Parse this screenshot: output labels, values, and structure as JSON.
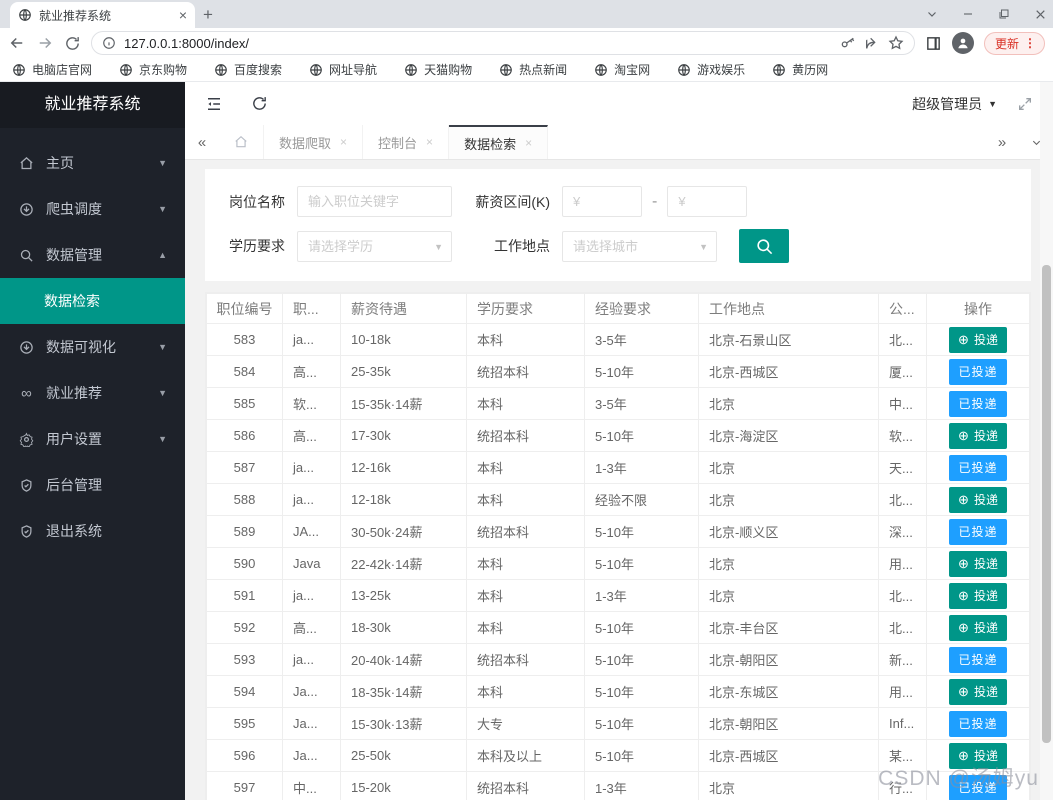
{
  "browser": {
    "tab_title": "就业推荐系统",
    "url": "127.0.0.1:8000/index/",
    "update_label": "更新",
    "bookmarks": [
      "电脑店官网",
      "京东购物",
      "百度搜索",
      "网址导航",
      "天猫购物",
      "热点新闻",
      "淘宝网",
      "游戏娱乐",
      "黄历网"
    ]
  },
  "sidebar": {
    "title": "就业推荐系统",
    "items": [
      {
        "label": "主页"
      },
      {
        "label": "爬虫调度"
      },
      {
        "label": "数据管理"
      },
      {
        "label": "数据检索"
      },
      {
        "label": "数据可视化"
      },
      {
        "label": "就业推荐"
      },
      {
        "label": "用户设置"
      },
      {
        "label": "后台管理"
      },
      {
        "label": "退出系统"
      }
    ]
  },
  "topbar": {
    "user_label": "超级管理员"
  },
  "tabbar": {
    "tabs": [
      {
        "label": "数据爬取"
      },
      {
        "label": "控制台"
      },
      {
        "label": "数据检索"
      }
    ]
  },
  "search": {
    "job_label": "岗位名称",
    "job_placeholder": "输入职位关键字",
    "salary_label": "薪资区间(K)",
    "salary_min_placeholder": "¥",
    "salary_max_placeholder": "¥",
    "salary_sep": "-",
    "edu_label": "学历要求",
    "edu_placeholder": "请选择学历",
    "city_label": "工作地点",
    "city_placeholder": "请选择城市"
  },
  "buttons": {
    "apply": "投递",
    "applied": "已投递"
  },
  "table": {
    "headers": [
      "职位编号",
      "职...",
      "薪资待遇",
      "学历要求",
      "经验要求",
      "工作地点",
      "公...",
      "操作"
    ],
    "rows": [
      {
        "id": "583",
        "title": "ja...",
        "salary": "10-18k",
        "edu": "本科",
        "exp": "3-5年",
        "loc": "北京-石景山区",
        "company": "北...",
        "applied": false
      },
      {
        "id": "584",
        "title": "高...",
        "salary": "25-35k",
        "edu": "统招本科",
        "exp": "5-10年",
        "loc": "北京-西城区",
        "company": "厦...",
        "applied": true
      },
      {
        "id": "585",
        "title": "软...",
        "salary": "15-35k·14薪",
        "edu": "本科",
        "exp": "3-5年",
        "loc": "北京",
        "company": "中...",
        "applied": true
      },
      {
        "id": "586",
        "title": "高...",
        "salary": "17-30k",
        "edu": "统招本科",
        "exp": "5-10年",
        "loc": "北京-海淀区",
        "company": "软...",
        "applied": false
      },
      {
        "id": "587",
        "title": "ja...",
        "salary": "12-16k",
        "edu": "本科",
        "exp": "1-3年",
        "loc": "北京",
        "company": "天...",
        "applied": true
      },
      {
        "id": "588",
        "title": "ja...",
        "salary": "12-18k",
        "edu": "本科",
        "exp": "经验不限",
        "loc": "北京",
        "company": "北...",
        "applied": false
      },
      {
        "id": "589",
        "title": "JA...",
        "salary": "30-50k·24薪",
        "edu": "统招本科",
        "exp": "5-10年",
        "loc": "北京-顺义区",
        "company": "深...",
        "applied": true
      },
      {
        "id": "590",
        "title": "Java",
        "salary": "22-42k·14薪",
        "edu": "本科",
        "exp": "5-10年",
        "loc": "北京",
        "company": "用...",
        "applied": false
      },
      {
        "id": "591",
        "title": "ja...",
        "salary": "13-25k",
        "edu": "本科",
        "exp": "1-3年",
        "loc": "北京",
        "company": "北...",
        "applied": false
      },
      {
        "id": "592",
        "title": "高...",
        "salary": "18-30k",
        "edu": "本科",
        "exp": "5-10年",
        "loc": "北京-丰台区",
        "company": "北...",
        "applied": false
      },
      {
        "id": "593",
        "title": "ja...",
        "salary": "20-40k·14薪",
        "edu": "统招本科",
        "exp": "5-10年",
        "loc": "北京-朝阳区",
        "company": "新...",
        "applied": true
      },
      {
        "id": "594",
        "title": "Ja...",
        "salary": "18-35k·14薪",
        "edu": "本科",
        "exp": "5-10年",
        "loc": "北京-东城区",
        "company": "用...",
        "applied": false
      },
      {
        "id": "595",
        "title": "Ja...",
        "salary": "15-30k·13薪",
        "edu": "大专",
        "exp": "5-10年",
        "loc": "北京-朝阳区",
        "company": "Inf...",
        "applied": true
      },
      {
        "id": "596",
        "title": "Ja...",
        "salary": "25-50k",
        "edu": "本科及以上",
        "exp": "5-10年",
        "loc": "北京-西城区",
        "company": "某...",
        "applied": false
      },
      {
        "id": "597",
        "title": "中...",
        "salary": "15-20k",
        "edu": "统招本科",
        "exp": "1-3年",
        "loc": "北京",
        "company": "行...",
        "applied": true
      }
    ]
  },
  "watermark": "CSDN @汤姆yu",
  "colors": {
    "accent": "#009688",
    "applied_blue": "#1e9fff",
    "update_red": "#d93025",
    "sidebar_bg": "#1e222a"
  }
}
